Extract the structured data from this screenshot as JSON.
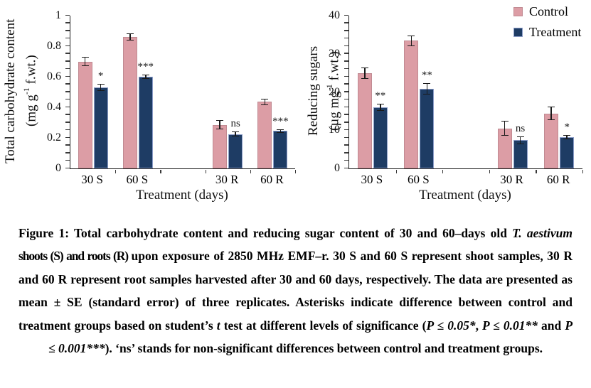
{
  "figure": {
    "caption": {
      "s1": "Figure 1: Total carbohydrate content and reducing sugar content of 30 and 60–days old ",
      "s2": "T. aestivum",
      "s3": " shoots (S) and roots (R) ",
      "s4": "upon exposure of 2850 MHz EMF–r. 30 S and 60 S represent shoot samples, 30 R and 60 R represent root samples harvested after 30 and 60 days, respectively. The data are presented as mean ± SE (standard error) of three replicates. Asterisks indicate difference between control and treatment groups based on student’s ",
      "s5": "t",
      "s6": " test at different levels of significance (",
      "s7": "P ≤ 0.05*",
      "s8": ", ",
      "s9": "P ≤ 0.01**",
      "s10": " and ",
      "s11": "P ≤ 0.001***",
      "s12": "). ‘ns’ stands for non-significant differences between control and treatment groups."
    }
  },
  "chart_data": [
    {
      "type": "bar",
      "title": "",
      "ylabel": {
        "line1": "Total carbohydrate content",
        "line2_pre": "(mg g",
        "line2_sup": "-1",
        "line2_post": " f.wt.)"
      },
      "xlabel": "Treatment (days)",
      "ylim": [
        0,
        1
      ],
      "yticks": [
        0,
        0.2,
        0.4,
        0.6,
        0.8,
        1
      ],
      "ytick_labels": [
        "0",
        "0.2",
        "0.4",
        "0.6",
        "0.8",
        "1"
      ],
      "minor_tick_step": 0.05,
      "grid": false,
      "slot_count": 5,
      "slot_index": [
        0,
        1,
        3,
        4
      ],
      "categories": [
        "30 S",
        "60 S",
        "30 R",
        "60 R"
      ],
      "series": [
        {
          "name": "Control",
          "color": "#DC9DA5",
          "border": "#C08A92",
          "values": [
            0.7,
            0.86,
            0.285,
            0.435
          ],
          "errors": [
            0.03,
            0.025,
            0.03,
            0.02
          ]
        },
        {
          "name": "Treatment",
          "color": "#1E3C64",
          "border": "#8B9CC8",
          "values": [
            0.53,
            0.6,
            0.225,
            0.245
          ],
          "errors": [
            0.025,
            0.015,
            0.015,
            0.012
          ]
        }
      ],
      "significance": [
        "*",
        "***",
        "ns",
        "***"
      ]
    },
    {
      "type": "bar",
      "title": "",
      "ylabel": {
        "line1": "Reducing sugars",
        "line2_pre": "(µg mg",
        "line2_sup": "-1",
        "line2_post": " f.wt.)"
      },
      "xlabel": "Treatment (days)",
      "ylim": [
        0,
        40
      ],
      "yticks": [
        0,
        10,
        20,
        30,
        40
      ],
      "ytick_labels": [
        "0",
        "10",
        "20",
        "30",
        "40"
      ],
      "minor_tick_step": 2,
      "grid": false,
      "slot_count": 5,
      "slot_index": [
        0,
        1,
        3,
        4
      ],
      "categories": [
        "30 S",
        "60 S",
        "30 R",
        "60 R"
      ],
      "series": [
        {
          "name": "Control",
          "color": "#DC9DA5",
          "border": "#C08A92",
          "values": [
            25,
            33.4,
            10.5,
            14.4
          ],
          "errors": [
            1.5,
            1.4,
            2.0,
            1.8
          ]
        },
        {
          "name": "Treatment",
          "color": "#1E3C64",
          "border": "#8B9CC8",
          "values": [
            16,
            20.9,
            7.4,
            8.2
          ],
          "errors": [
            0.9,
            1.5,
            1.0,
            0.6
          ]
        }
      ],
      "significance": [
        "**",
        "**",
        "ns",
        "*"
      ],
      "legend": {
        "position": "top-right"
      }
    }
  ]
}
